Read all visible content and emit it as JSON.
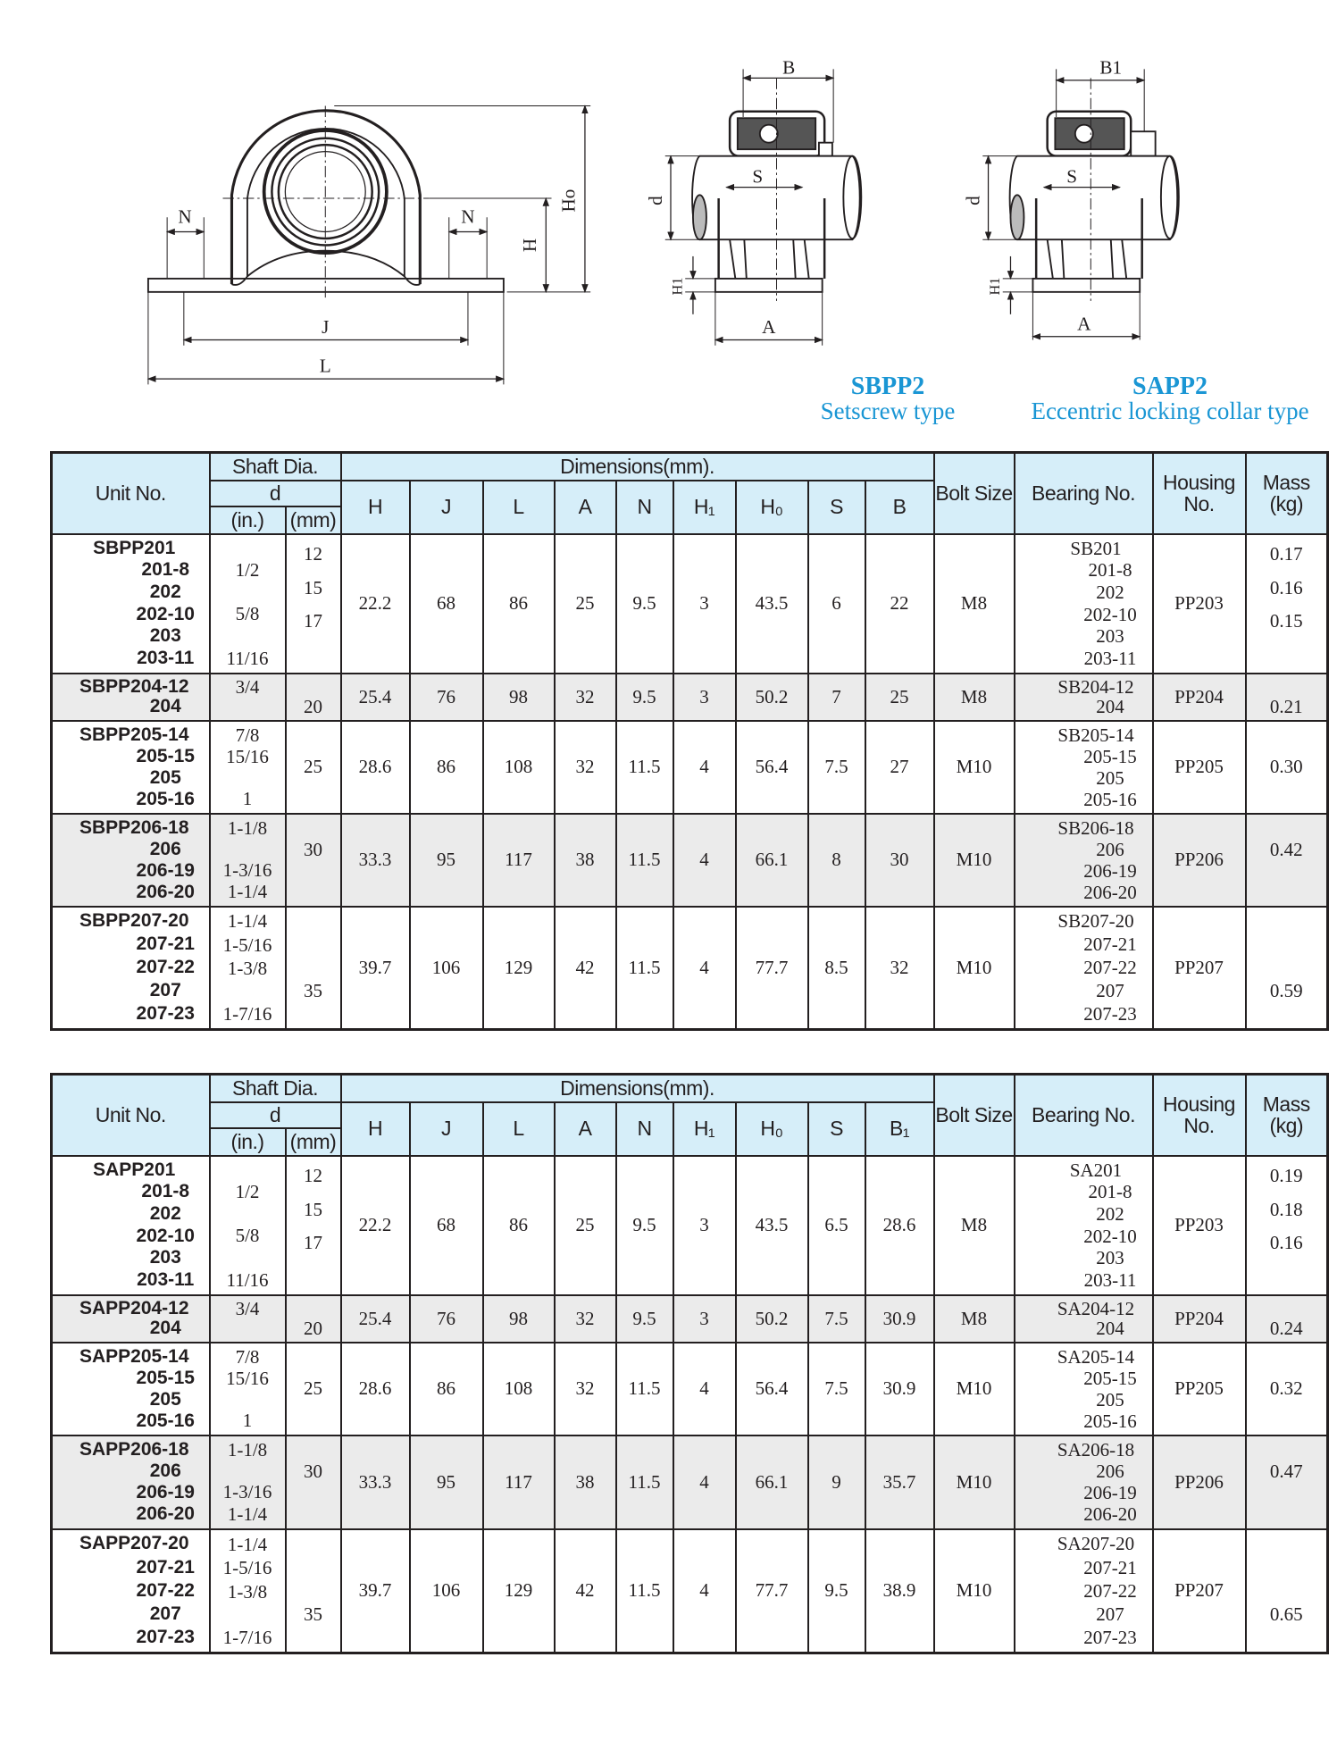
{
  "drawings": {
    "front_labels": {
      "N_left": "N",
      "N_right": "N",
      "J": "J",
      "L": "L",
      "H": "H",
      "Ho": "Ho"
    },
    "sbpp2_labels": {
      "B": "B",
      "S": "S",
      "d": "d",
      "H1": "H1",
      "A": "A"
    },
    "sapp2_labels": {
      "B1": "B1",
      "S": "S",
      "d": "d",
      "H1": "H1",
      "A": "A"
    },
    "sbpp2_caption": {
      "title": "SBPP2",
      "subtitle": "Setscrew type"
    },
    "sapp2_caption": {
      "title": "SAPP2",
      "subtitle": "Eccentric locking collar type"
    },
    "caption_color": "#1a96d4"
  },
  "header": {
    "unit_no": "Unit No.",
    "shaft_dia": "Shaft Dia.",
    "d": "d",
    "in": "(in.)",
    "mm": "(mm)",
    "dimensions": "Dimensions(mm).",
    "bolt_size": "Bolt Size",
    "bearing_no": "Bearing No.",
    "housing_no": "Housing No.",
    "mass": "Mass (kg)"
  },
  "colors": {
    "header_bg": "#d6eef9",
    "alt_row": "#ebebeb"
  },
  "tables": [
    {
      "dim_cols": [
        "H",
        "J",
        "L",
        "A",
        "N",
        "H₁",
        "H₀",
        "S",
        "B"
      ],
      "rows": [
        {
          "unit": [
            "SBPP201",
            "201-8",
            "202",
            "202-10",
            "203",
            "203-11"
          ],
          "in": [
            "",
            "1/2",
            "",
            "5/8",
            "",
            "11/16"
          ],
          "mm": [
            "12",
            "15",
            "17",
            ""
          ],
          "dims": [
            "22.2",
            "68",
            "86",
            "25",
            "9.5",
            "3",
            "43.5",
            "6",
            "22"
          ],
          "bolt": "M8",
          "bearing": [
            "SB201",
            "201-8",
            "202",
            "202-10",
            "203",
            "203-11"
          ],
          "housing": "PP203",
          "mass": [
            "0.17",
            "0.16",
            "0.15",
            ""
          ]
        },
        {
          "unit": [
            "SBPP204-12",
            "204"
          ],
          "in": [
            "3/4",
            ""
          ],
          "mm": [
            "",
            "20"
          ],
          "dims": [
            "25.4",
            "76",
            "98",
            "32",
            "9.5",
            "3",
            "50.2",
            "7",
            "25"
          ],
          "bolt": "M8",
          "bearing": [
            "SB204-12",
            "204"
          ],
          "housing": "PP204",
          "mass": [
            "",
            "0.21"
          ]
        },
        {
          "unit": [
            "SBPP205-14",
            "205-15",
            "205",
            "205-16"
          ],
          "in": [
            "7/8",
            "15/16",
            "",
            "1"
          ],
          "mm": "25",
          "dims": [
            "28.6",
            "86",
            "108",
            "32",
            "11.5",
            "4",
            "56.4",
            "7.5",
            "27"
          ],
          "bolt": "M10",
          "bearing": [
            "SB205-14",
            "205-15",
            "205",
            "205-16"
          ],
          "housing": "PP205",
          "mass": "0.30"
        },
        {
          "unit": [
            "SBPP206-18",
            "206",
            "206-19",
            "206-20"
          ],
          "in": [
            "1-1/8",
            "",
            "1-3/16",
            "1-1/4"
          ],
          "mm": [
            "",
            "30",
            "",
            ""
          ],
          "dims": [
            "33.3",
            "95",
            "117",
            "38",
            "11.5",
            "4",
            "66.1",
            "8",
            "30"
          ],
          "bolt": "M10",
          "bearing": [
            "SB206-18",
            "206",
            "206-19",
            "206-20"
          ],
          "housing": "PP206",
          "mass": [
            "",
            "0.42",
            "",
            ""
          ]
        },
        {
          "unit": [
            "SBPP207-20",
            "207-21",
            "207-22",
            "207",
            "207-23"
          ],
          "in": [
            "1-1/4",
            "1-5/16",
            "1-3/8",
            "",
            "1-7/16"
          ],
          "mm": [
            "",
            "",
            "",
            "35",
            ""
          ],
          "dims": [
            "39.7",
            "106",
            "129",
            "42",
            "11.5",
            "4",
            "77.7",
            "8.5",
            "32"
          ],
          "bolt": "M10",
          "bearing": [
            "SB207-20",
            "207-21",
            "207-22",
            "207",
            "207-23"
          ],
          "housing": "PP207",
          "mass": [
            "",
            "",
            "",
            "0.59",
            ""
          ]
        }
      ]
    },
    {
      "dim_cols": [
        "H",
        "J",
        "L",
        "A",
        "N",
        "H₁",
        "H₀",
        "S",
        "B₁"
      ],
      "rows": [
        {
          "unit": [
            "SAPP201",
            "201-8",
            "202",
            "202-10",
            "203",
            "203-11"
          ],
          "in": [
            "",
            "1/2",
            "",
            "5/8",
            "",
            "11/16"
          ],
          "mm": [
            "12",
            "15",
            "17",
            ""
          ],
          "dims": [
            "22.2",
            "68",
            "86",
            "25",
            "9.5",
            "3",
            "43.5",
            "6.5",
            "28.6"
          ],
          "bolt": "M8",
          "bearing": [
            "SA201",
            "201-8",
            "202",
            "202-10",
            "203",
            "203-11"
          ],
          "housing": "PP203",
          "mass": [
            "0.19",
            "0.18",
            "0.16",
            ""
          ]
        },
        {
          "unit": [
            "SAPP204-12",
            "204"
          ],
          "in": [
            "3/4",
            ""
          ],
          "mm": [
            "",
            "20"
          ],
          "dims": [
            "25.4",
            "76",
            "98",
            "32",
            "9.5",
            "3",
            "50.2",
            "7.5",
            "30.9"
          ],
          "bolt": "M8",
          "bearing": [
            "SA204-12",
            "204"
          ],
          "housing": "PP204",
          "mass": [
            "",
            "0.24"
          ]
        },
        {
          "unit": [
            "SAPP205-14",
            "205-15",
            "205",
            "205-16"
          ],
          "in": [
            "7/8",
            "15/16",
            "",
            "1"
          ],
          "mm": "25",
          "dims": [
            "28.6",
            "86",
            "108",
            "32",
            "11.5",
            "4",
            "56.4",
            "7.5",
            "30.9"
          ],
          "bolt": "M10",
          "bearing": [
            "SA205-14",
            "205-15",
            "205",
            "205-16"
          ],
          "housing": "PP205",
          "mass": "0.32"
        },
        {
          "unit": [
            "SAPP206-18",
            "206",
            "206-19",
            "206-20"
          ],
          "in": [
            "1-1/8",
            "",
            "1-3/16",
            "1-1/4"
          ],
          "mm": [
            "",
            "30",
            "",
            ""
          ],
          "dims": [
            "33.3",
            "95",
            "117",
            "38",
            "11.5",
            "4",
            "66.1",
            "9",
            "35.7"
          ],
          "bolt": "M10",
          "bearing": [
            "SA206-18",
            "206",
            "206-19",
            "206-20"
          ],
          "housing": "PP206",
          "mass": [
            "",
            "0.47",
            "",
            ""
          ]
        },
        {
          "unit": [
            "SAPP207-20",
            "207-21",
            "207-22",
            "207",
            "207-23"
          ],
          "in": [
            "1-1/4",
            "1-5/16",
            "1-3/8",
            "",
            "1-7/16"
          ],
          "mm": [
            "",
            "",
            "",
            "35",
            ""
          ],
          "dims": [
            "39.7",
            "106",
            "129",
            "42",
            "11.5",
            "4",
            "77.7",
            "9.5",
            "38.9"
          ],
          "bolt": "M10",
          "bearing": [
            "SA207-20",
            "207-21",
            "207-22",
            "207",
            "207-23"
          ],
          "housing": "PP207",
          "mass": [
            "",
            "",
            "",
            "0.65",
            ""
          ]
        }
      ]
    }
  ]
}
